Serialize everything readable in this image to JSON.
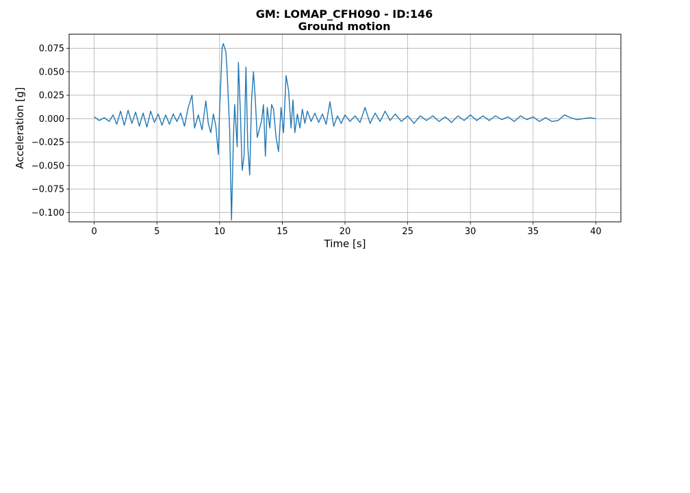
{
  "chart_data": {
    "type": "line",
    "title": "GM: LOMAP_CFH090 - ID:146",
    "subtitle": "Ground motion",
    "xlabel": "Time [s]",
    "ylabel": "Acceleration [g]",
    "xlim": [
      -2,
      42
    ],
    "ylim": [
      -0.11,
      0.09
    ],
    "xticks": [
      0,
      5,
      10,
      15,
      20,
      25,
      30,
      35,
      40
    ],
    "xtick_labels": [
      "0",
      "5",
      "10",
      "15",
      "20",
      "25",
      "30",
      "35",
      "40"
    ],
    "yticks": [
      0.075,
      0.05,
      0.025,
      0.0,
      -0.025,
      -0.05,
      -0.075,
      -0.1
    ],
    "ytick_labels": [
      "0.075",
      "0.050",
      "0.025",
      "0.000",
      "−0.025",
      "−0.050",
      "−0.075",
      "−0.100"
    ],
    "grid": true,
    "line_color": "#1f77b4",
    "series": [
      {
        "x": [
          0,
          0.4,
          0.8,
          1.2,
          1.5,
          1.8,
          2.1,
          2.4,
          2.7,
          3.0,
          3.3,
          3.6,
          3.9,
          4.2,
          4.5,
          4.8,
          5.1,
          5.4,
          5.7,
          6.0,
          6.3,
          6.6,
          6.9,
          7.2,
          7.5,
          7.8,
          8.0,
          8.3,
          8.6,
          8.9,
          9.1,
          9.3,
          9.5,
          9.7,
          9.9,
          10.0,
          10.1,
          10.2,
          10.3,
          10.5,
          10.6,
          10.8,
          10.95,
          11.1,
          11.2,
          11.4,
          11.5,
          11.65,
          11.8,
          11.95,
          12.1,
          12.25,
          12.4,
          12.55,
          12.7,
          12.85,
          13.0,
          13.2,
          13.35,
          13.5,
          13.65,
          13.8,
          14.0,
          14.15,
          14.3,
          14.5,
          14.7,
          14.9,
          15.1,
          15.3,
          15.5,
          15.7,
          15.85,
          16.0,
          16.2,
          16.4,
          16.6,
          16.8,
          17.0,
          17.3,
          17.6,
          17.9,
          18.2,
          18.5,
          18.8,
          19.1,
          19.4,
          19.7,
          20.0,
          20.4,
          20.8,
          21.2,
          21.6,
          22.0,
          22.4,
          22.8,
          23.2,
          23.6,
          24.0,
          24.5,
          25.0,
          25.5,
          26.0,
          26.5,
          27.0,
          27.5,
          28.0,
          28.5,
          29.0,
          29.5,
          30.0,
          30.5,
          31.0,
          31.5,
          32.0,
          32.5,
          33.0,
          33.5,
          34.0,
          34.5,
          35.0,
          35.5,
          36.0,
          36.5,
          37.0,
          37.5,
          38.0,
          38.5,
          39.0,
          39.5,
          40.0
        ],
        "y": [
          0.002,
          -0.002,
          0.001,
          -0.003,
          0.004,
          -0.006,
          0.008,
          -0.007,
          0.009,
          -0.005,
          0.007,
          -0.008,
          0.006,
          -0.009,
          0.008,
          -0.004,
          0.005,
          -0.007,
          0.004,
          -0.006,
          0.005,
          -0.003,
          0.006,
          -0.008,
          0.012,
          0.025,
          -0.01,
          0.004,
          -0.012,
          0.019,
          -0.005,
          -0.015,
          0.005,
          -0.008,
          -0.038,
          0.01,
          0.04,
          0.076,
          0.08,
          0.071,
          0.05,
          -0.012,
          -0.108,
          -0.02,
          0.015,
          -0.03,
          0.06,
          0.01,
          -0.055,
          -0.04,
          0.055,
          -0.03,
          -0.06,
          0.02,
          0.05,
          0.02,
          -0.02,
          -0.01,
          -0.002,
          0.015,
          -0.04,
          0.012,
          -0.01,
          0.015,
          0.01,
          -0.02,
          -0.035,
          0.012,
          -0.015,
          0.046,
          0.03,
          -0.01,
          0.02,
          -0.015,
          0.005,
          -0.01,
          0.01,
          -0.005,
          0.008,
          -0.003,
          0.006,
          -0.004,
          0.005,
          -0.006,
          0.018,
          -0.008,
          0.003,
          -0.005,
          0.004,
          -0.003,
          0.003,
          -0.004,
          0.012,
          -0.005,
          0.006,
          -0.003,
          0.008,
          -0.002,
          0.005,
          -0.003,
          0.003,
          -0.005,
          0.003,
          -0.002,
          0.003,
          -0.003,
          0.002,
          -0.004,
          0.003,
          -0.002,
          0.004,
          -0.002,
          0.003,
          -0.002,
          0.003,
          -0.001,
          0.002,
          -0.003,
          0.003,
          -0.001,
          0.002,
          -0.003,
          0.001,
          -0.003,
          -0.002,
          0.004,
          0.001,
          -0.001,
          0.0,
          0.001,
          0.0
        ]
      }
    ]
  }
}
